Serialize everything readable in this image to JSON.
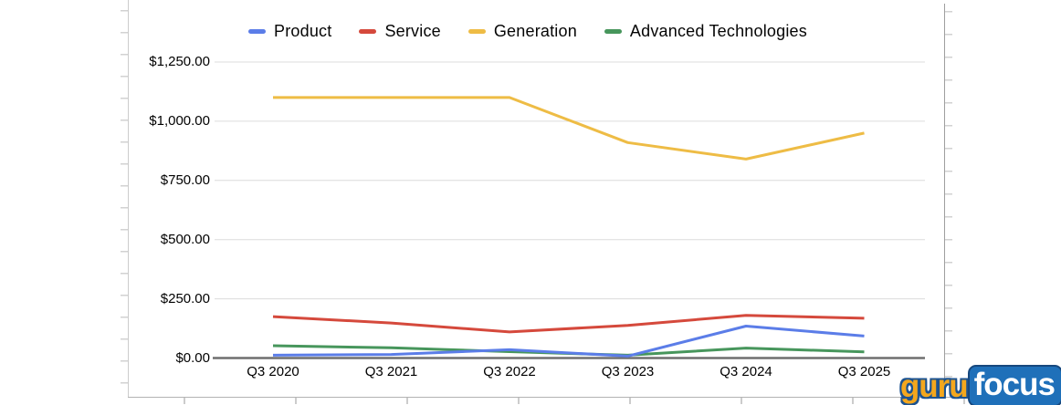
{
  "chart_data": {
    "type": "line",
    "title": "",
    "categories": [
      "Q3 2020",
      "Q3 2021",
      "Q3 2022",
      "Q3 2023",
      "Q3 2024",
      "Q3 2025"
    ],
    "series": [
      {
        "name": "Product",
        "color": "#5b7de8",
        "values": [
          12,
          15,
          35,
          8,
          135,
          93
        ]
      },
      {
        "name": "Service",
        "color": "#d5493c",
        "values": [
          175,
          148,
          110,
          138,
          180,
          168
        ]
      },
      {
        "name": "Generation",
        "color": "#eebc45",
        "values": [
          1100,
          1100,
          1100,
          910,
          840,
          950
        ]
      },
      {
        "name": "Advanced Technologies",
        "color": "#47965c",
        "values": [
          52,
          43,
          27,
          12,
          42,
          26
        ]
      }
    ],
    "y_ticks": [
      {
        "label": "$1,250.00",
        "value": 1250
      },
      {
        "label": "$1,000.00",
        "value": 1000
      },
      {
        "label": "$750.00",
        "value": 750
      },
      {
        "label": "$500.00",
        "value": 500
      },
      {
        "label": "$250.00",
        "value": 250
      },
      {
        "label": "$0.00",
        "value": 0
      }
    ],
    "ylim": [
      0,
      1250
    ],
    "grid": "horizontal",
    "legend_position": "top",
    "colors": {
      "gridline": "#dcdcdc",
      "zero_axis": "#6f6f6f",
      "label_text": "#000000"
    }
  },
  "watermark": {
    "guru": "guru",
    "focus": "focus"
  }
}
